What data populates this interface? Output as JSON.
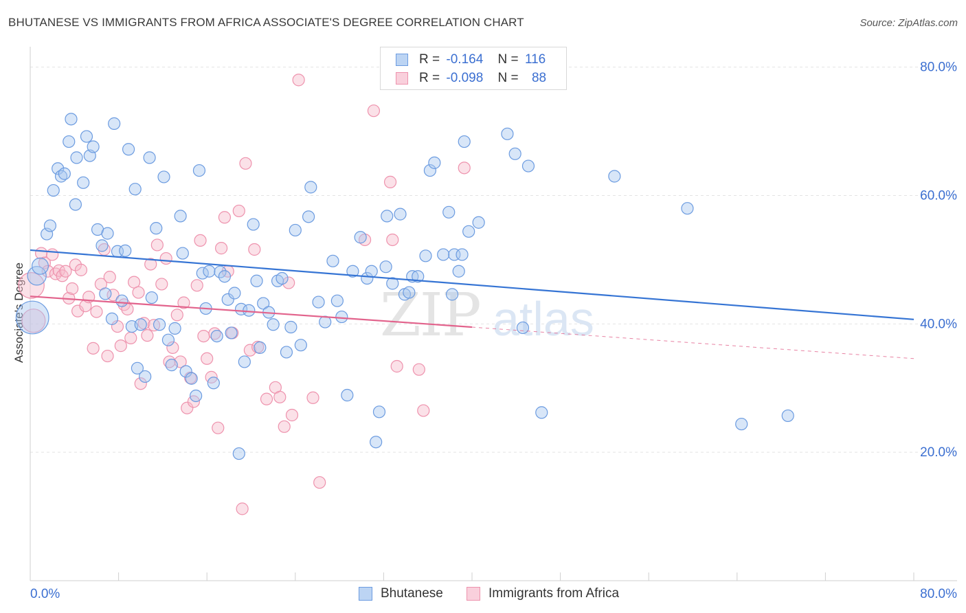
{
  "title": "BHUTANESE VS IMMIGRANTS FROM AFRICA ASSOCIATE'S DEGREE CORRELATION CHART",
  "source": "Source: ZipAtlas.com",
  "watermark": "ZIPatlas",
  "legend": {
    "r_label": "R =",
    "n_label": "N =",
    "rows": [
      {
        "r": "-0.164",
        "n": "116"
      },
      {
        "r": "-0.098",
        "n": "88"
      }
    ]
  },
  "chart_data": {
    "type": "scatter",
    "title": "BHUTANESE VS IMMIGRANTS FROM AFRICA ASSOCIATE'S DEGREE CORRELATION CHART",
    "xlabel": "",
    "ylabel": "Associate's Degree",
    "xlim": [
      0,
      80
    ],
    "ylim": [
      0,
      82
    ],
    "x_tick_labels": [
      "0.0%",
      "80.0%"
    ],
    "y_tick_labels": [
      "20.0%",
      "40.0%",
      "60.0%",
      "80.0%"
    ],
    "y_ticks": [
      20,
      40,
      60,
      80
    ],
    "grid": true,
    "legend_position": "top-center",
    "colors": {
      "bhutanese_fill": "#a9c7ef",
      "bhutanese_stroke": "#6b9be0",
      "bhutanese_line": "#3574d4",
      "africa_fill": "#f6bccd",
      "africa_stroke": "#ee92ad",
      "africa_line": "#e2638c",
      "tick_label": "#3b6fd1"
    },
    "series": [
      {
        "name": "Bhutanese",
        "r": -0.164,
        "n": 116,
        "trend": {
          "x0": 0,
          "y0": 51.5,
          "x1": 80,
          "y1": 40.7
        },
        "points": [
          [
            0.2,
            41,
            28
          ],
          [
            0.6,
            47.5,
            16
          ],
          [
            0.9,
            49,
            14
          ],
          [
            1.5,
            54,
            10
          ],
          [
            1.8,
            55.3,
            10
          ],
          [
            2.1,
            60.8,
            10
          ],
          [
            2.5,
            64.2,
            10
          ],
          [
            2.8,
            63,
            10
          ],
          [
            3.1,
            63.4,
            10
          ],
          [
            3.5,
            68.4,
            10
          ],
          [
            3.7,
            71.9,
            10
          ],
          [
            4.2,
            65.9,
            10
          ],
          [
            4.1,
            58.6,
            10
          ],
          [
            4.8,
            62,
            10
          ],
          [
            5.1,
            69.2,
            10
          ],
          [
            5.4,
            66.2,
            10
          ],
          [
            5.7,
            67.6,
            10
          ],
          [
            6.1,
            54.7,
            10
          ],
          [
            6.5,
            52.2,
            10
          ],
          [
            6.8,
            44.7,
            10
          ],
          [
            7.0,
            54.1,
            10
          ],
          [
            7.4,
            40.8,
            10
          ],
          [
            7.6,
            71.2,
            10
          ],
          [
            7.9,
            51.3,
            10
          ],
          [
            8.3,
            43.6,
            10
          ],
          [
            8.6,
            51.4,
            10
          ],
          [
            8.9,
            67.2,
            10
          ],
          [
            9.2,
            39.6,
            10
          ],
          [
            9.5,
            61,
            10
          ],
          [
            9.7,
            33.1,
            10
          ],
          [
            10.0,
            39.9,
            10
          ],
          [
            10.4,
            31.8,
            10
          ],
          [
            10.8,
            65.9,
            10
          ],
          [
            11.0,
            44.1,
            10
          ],
          [
            11.4,
            54.9,
            10
          ],
          [
            11.7,
            39.9,
            10
          ],
          [
            12.1,
            62.9,
            10
          ],
          [
            12.5,
            37.5,
            10
          ],
          [
            12.8,
            33.6,
            10
          ],
          [
            13.1,
            39.3,
            10
          ],
          [
            13.6,
            56.8,
            10
          ],
          [
            13.8,
            51,
            10
          ],
          [
            14.1,
            32.6,
            10
          ],
          [
            14.6,
            31.5,
            10
          ],
          [
            15.0,
            28.8,
            10
          ],
          [
            15.3,
            63.9,
            10
          ],
          [
            15.6,
            47.9,
            10
          ],
          [
            15.9,
            42.4,
            10
          ],
          [
            16.2,
            48.2,
            10
          ],
          [
            16.6,
            30.8,
            10
          ],
          [
            16.9,
            38.1,
            10
          ],
          [
            17.2,
            48.1,
            10
          ],
          [
            17.6,
            47.4,
            10
          ],
          [
            17.9,
            43.8,
            10
          ],
          [
            18.2,
            38.6,
            10
          ],
          [
            18.5,
            44.8,
            10
          ],
          [
            18.9,
            19.8,
            10
          ],
          [
            19.1,
            42.3,
            10
          ],
          [
            19.4,
            34.1,
            10
          ],
          [
            19.8,
            42.1,
            10
          ],
          [
            20.2,
            55.5,
            10
          ],
          [
            20.5,
            46.7,
            10
          ],
          [
            20.8,
            36.3,
            10
          ],
          [
            21.1,
            43.2,
            10
          ],
          [
            21.6,
            41.8,
            10
          ],
          [
            22.0,
            39.9,
            10
          ],
          [
            22.4,
            46.7,
            10
          ],
          [
            22.8,
            47.1,
            10
          ],
          [
            23.2,
            35.6,
            10
          ],
          [
            23.6,
            39.5,
            10
          ],
          [
            24.0,
            54.6,
            10
          ],
          [
            24.5,
            36.7,
            10
          ],
          [
            25.2,
            56.7,
            10
          ],
          [
            25.4,
            61.3,
            10
          ],
          [
            26.1,
            43.4,
            10
          ],
          [
            26.7,
            40.3,
            10
          ],
          [
            27.4,
            49.8,
            10
          ],
          [
            27.8,
            43.6,
            10
          ],
          [
            28.2,
            41.1,
            10
          ],
          [
            28.7,
            28.9,
            10
          ],
          [
            29.2,
            48.2,
            10
          ],
          [
            29.9,
            53.5,
            10
          ],
          [
            30.5,
            47.1,
            10
          ],
          [
            30.9,
            48.2,
            10
          ],
          [
            31.3,
            21.6,
            10
          ],
          [
            31.6,
            26.3,
            10
          ],
          [
            32.2,
            48.9,
            10
          ],
          [
            32.3,
            56.8,
            10
          ],
          [
            32.8,
            46.3,
            10
          ],
          [
            33.5,
            57.1,
            10
          ],
          [
            33.9,
            44.6,
            10
          ],
          [
            34.3,
            44.9,
            10
          ],
          [
            34.6,
            47.4,
            10
          ],
          [
            35.1,
            47.4,
            10
          ],
          [
            35.8,
            50.6,
            10
          ],
          [
            36.2,
            63.9,
            10
          ],
          [
            36.6,
            65.1,
            10
          ],
          [
            37.4,
            50.8,
            10
          ],
          [
            37.9,
            57.4,
            10
          ],
          [
            38.2,
            44.6,
            10
          ],
          [
            38.4,
            50.8,
            10
          ],
          [
            38.8,
            48.2,
            10
          ],
          [
            39.1,
            50.8,
            10
          ],
          [
            39.3,
            68.4,
            10
          ],
          [
            39.7,
            54.4,
            10
          ],
          [
            40.6,
            55.8,
            10
          ],
          [
            43.2,
            69.6,
            10
          ],
          [
            43.9,
            66.5,
            10
          ],
          [
            44.6,
            39.4,
            10
          ],
          [
            45.1,
            64.6,
            10
          ],
          [
            46.3,
            26.2,
            10
          ],
          [
            52.9,
            63,
            10
          ],
          [
            59.5,
            58,
            10
          ],
          [
            64.4,
            24.4,
            10
          ],
          [
            68.6,
            25.7,
            10
          ]
        ]
      },
      {
        "name": "Immigrants from Africa",
        "r": -0.098,
        "n": 88,
        "trend": {
          "x0": 0,
          "y0": 44.3,
          "x1": 40,
          "y1": 39.5,
          "dashed_to": {
            "x": 80,
            "y": 34.6
          }
        },
        "points": [
          [
            0.1,
            46,
            22
          ],
          [
            0.3,
            40.5,
            20
          ],
          [
            1.0,
            51,
            10
          ],
          [
            1.3,
            49.5,
            10
          ],
          [
            1.6,
            48.2,
            10
          ],
          [
            2.0,
            50.8,
            10
          ],
          [
            2.3,
            47.8,
            10
          ],
          [
            2.6,
            48.3,
            10
          ],
          [
            2.9,
            47.5,
            10
          ],
          [
            3.2,
            48.2,
            10
          ],
          [
            3.5,
            44,
            10
          ],
          [
            3.8,
            45.5,
            10
          ],
          [
            4.1,
            49.2,
            10
          ],
          [
            4.3,
            42,
            10
          ],
          [
            4.6,
            48.4,
            10
          ],
          [
            5.0,
            42.8,
            10
          ],
          [
            5.3,
            44.2,
            10
          ],
          [
            5.7,
            36.2,
            10
          ],
          [
            6.0,
            41.9,
            10
          ],
          [
            6.4,
            46.2,
            10
          ],
          [
            6.7,
            51.6,
            10
          ],
          [
            7.0,
            35,
            10
          ],
          [
            7.2,
            47.3,
            10
          ],
          [
            7.5,
            44.5,
            10
          ],
          [
            7.9,
            39.6,
            10
          ],
          [
            8.2,
            36.6,
            10
          ],
          [
            8.5,
            43,
            10
          ],
          [
            8.8,
            42.3,
            10
          ],
          [
            9.1,
            37.8,
            10
          ],
          [
            9.4,
            46.5,
            10
          ],
          [
            9.8,
            44.9,
            10
          ],
          [
            10.0,
            30.7,
            10
          ],
          [
            10.3,
            40.1,
            10
          ],
          [
            10.6,
            38.2,
            10
          ],
          [
            10.9,
            49.3,
            10
          ],
          [
            11.2,
            39.8,
            10
          ],
          [
            11.5,
            52.3,
            10
          ],
          [
            11.9,
            46.2,
            10
          ],
          [
            12.3,
            50.2,
            10
          ],
          [
            12.6,
            34.1,
            10
          ],
          [
            12.9,
            36.3,
            10
          ],
          [
            13.3,
            41.4,
            10
          ],
          [
            13.6,
            34.1,
            10
          ],
          [
            13.9,
            43.3,
            10
          ],
          [
            14.2,
            26.9,
            10
          ],
          [
            14.5,
            31.6,
            10
          ],
          [
            14.8,
            27.9,
            10
          ],
          [
            15.1,
            46,
            10
          ],
          [
            15.4,
            53,
            10
          ],
          [
            15.7,
            38.1,
            10
          ],
          [
            16.0,
            34.6,
            10
          ],
          [
            16.4,
            31.7,
            10
          ],
          [
            16.7,
            38.5,
            10
          ],
          [
            17.0,
            23.8,
            10
          ],
          [
            17.3,
            51.8,
            10
          ],
          [
            17.6,
            56.6,
            10
          ],
          [
            17.9,
            48.2,
            10
          ],
          [
            18.3,
            38.6,
            10
          ],
          [
            18.9,
            57.6,
            10
          ],
          [
            19.2,
            11.2,
            10
          ],
          [
            19.5,
            65,
            10
          ],
          [
            19.9,
            35.9,
            10
          ],
          [
            20.3,
            51.6,
            10
          ],
          [
            20.6,
            36.4,
            10
          ],
          [
            21.4,
            28.3,
            10
          ],
          [
            22.2,
            30.1,
            10
          ],
          [
            22.6,
            28.6,
            10
          ],
          [
            23.0,
            24,
            10
          ],
          [
            23.4,
            46.4,
            10
          ],
          [
            23.7,
            25.8,
            10
          ],
          [
            24.3,
            78,
            10
          ],
          [
            25.6,
            28.5,
            10
          ],
          [
            26.2,
            15.3,
            10
          ],
          [
            30.3,
            53.1,
            10
          ],
          [
            31.1,
            73.2,
            10
          ],
          [
            32.6,
            62.1,
            10
          ],
          [
            32.8,
            53.1,
            10
          ],
          [
            33.2,
            33.4,
            10
          ],
          [
            35.2,
            32.9,
            10
          ],
          [
            35.6,
            26.5,
            10
          ],
          [
            39.3,
            64.3,
            10
          ]
        ]
      }
    ]
  }
}
